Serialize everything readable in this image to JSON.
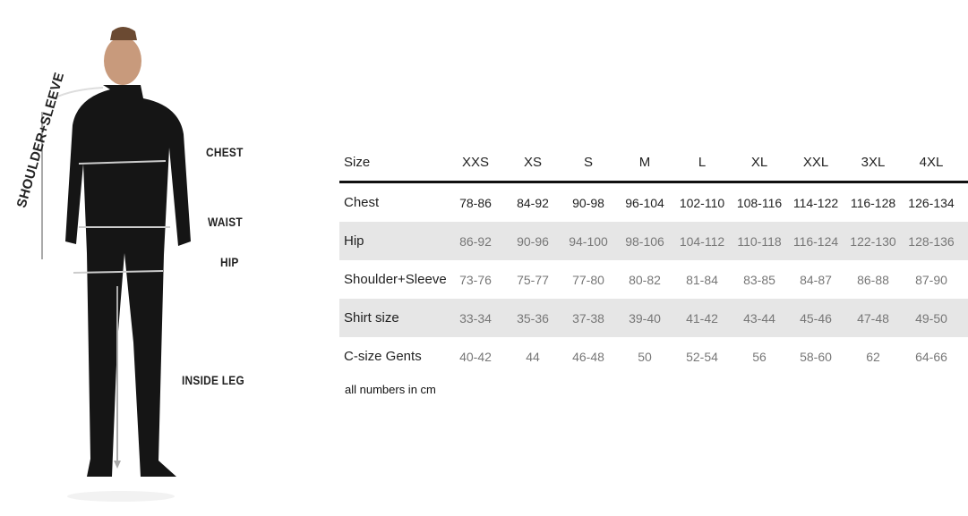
{
  "figure": {
    "labels": {
      "shoulder_sleeve": "SHOULDER+SLEEVE",
      "chest": "CHEST",
      "waist": "WAIST",
      "hip": "HIP",
      "inside_leg": "INSIDE LEG"
    }
  },
  "table": {
    "header_label": "Size",
    "sizes": [
      "XXS",
      "XS",
      "S",
      "M",
      "L",
      "XL",
      "XXL",
      "3XL",
      "4XL"
    ],
    "rows": [
      {
        "label": "Chest",
        "values": [
          "78-86",
          "84-92",
          "90-98",
          "96-104",
          "102-110",
          "108-116",
          "114-122",
          "116-128",
          "126-134"
        ]
      },
      {
        "label": "Hip",
        "values": [
          "86-92",
          "90-96",
          "94-100",
          "98-106",
          "104-112",
          "110-118",
          "116-124",
          "122-130",
          "128-136"
        ]
      },
      {
        "label": "Shoulder+Sleeve",
        "values": [
          "73-76",
          "75-77",
          "77-80",
          "80-82",
          "81-84",
          "83-85",
          "84-87",
          "86-88",
          "87-90"
        ]
      },
      {
        "label": "Shirt size",
        "values": [
          "33-34",
          "35-36",
          "37-38",
          "39-40",
          "41-42",
          "43-44",
          "45-46",
          "47-48",
          "49-50"
        ]
      },
      {
        "label": "C-size Gents",
        "values": [
          "40-42",
          "44",
          "46-48",
          "50",
          "52-54",
          "56",
          "58-60",
          "62",
          "64-66"
        ]
      }
    ]
  },
  "note": "all numbers in cm",
  "colors": {
    "shade": "#e6e6e6",
    "rule": "#111111",
    "garment": "#151515"
  }
}
